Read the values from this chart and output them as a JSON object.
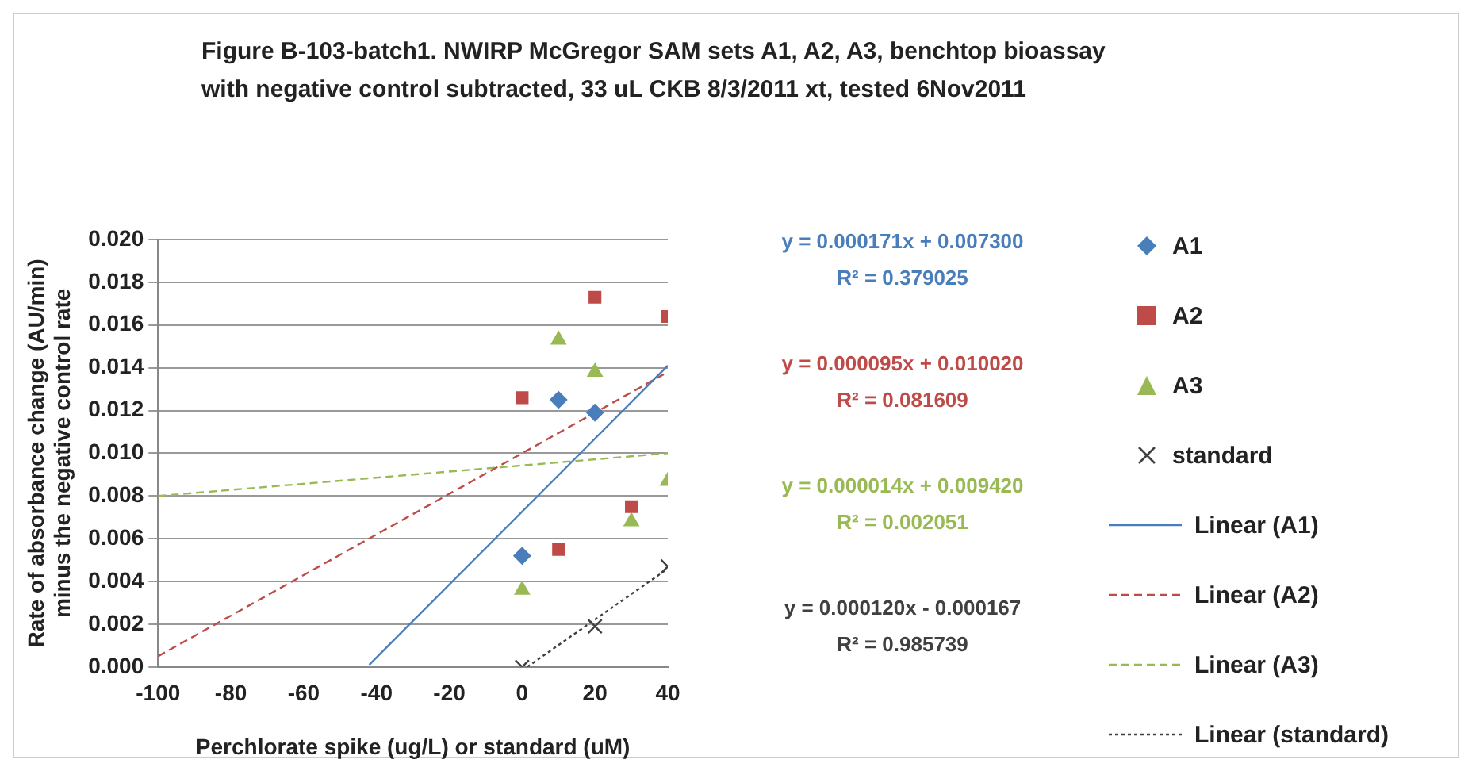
{
  "chart_data": {
    "type": "scatter",
    "title": "Figure B-103-batch1. NWIRP McGregor SAM sets A1, A2, A3, benchtop bioassay with negative control subtracted, 33 uL CKB 8/3/2011 xt, tested 6Nov2011",
    "xlabel": "Perchlorate spike (ug/L) or standard (uM)",
    "ylabel": "Rate of absorbance change (AU/min)\nminus the negative control rate",
    "xlim": [
      -100,
      40
    ],
    "xticks": [
      -100,
      -80,
      -60,
      -40,
      -20,
      0,
      20,
      40
    ],
    "ylim": [
      0,
      0.02
    ],
    "yticks": [
      {
        "value": 0,
        "label": "0.000"
      },
      {
        "value": 0.002,
        "label": "0.002"
      },
      {
        "value": 0.004,
        "label": "0.004"
      },
      {
        "value": 0.006,
        "label": "0.006"
      },
      {
        "value": 0.008,
        "label": "0.008"
      },
      {
        "value": 0.01,
        "label": "0.010"
      },
      {
        "value": 0.012,
        "label": "0.012"
      },
      {
        "value": 0.014,
        "label": "0.014"
      },
      {
        "value": 0.016,
        "label": "0.016"
      },
      {
        "value": 0.018,
        "label": "0.018"
      },
      {
        "value": 0.02,
        "label": "0.020"
      }
    ],
    "grid": "y",
    "legend": "right",
    "series": [
      {
        "name": "A1",
        "type": "scatter",
        "marker": "diamond",
        "color": "#4a7ebb",
        "x": [
          0,
          10,
          20
        ],
        "values": [
          0.0052,
          0.0125,
          0.0119
        ]
      },
      {
        "name": "A2",
        "type": "scatter",
        "marker": "square",
        "color": "#be4b48",
        "x": [
          0,
          10,
          20,
          30,
          40
        ],
        "values": [
          0.0126,
          0.0055,
          0.0173,
          0.0075,
          0.0164
        ]
      },
      {
        "name": "A3",
        "type": "scatter",
        "marker": "triangle",
        "color": "#98b954",
        "x": [
          0,
          10,
          20,
          30,
          40
        ],
        "values": [
          0.0036,
          0.0153,
          0.0138,
          0.0068,
          0.0087
        ]
      },
      {
        "name": "standard",
        "type": "scatter",
        "marker": "cross",
        "color": "#404040",
        "x": [
          0,
          20,
          40
        ],
        "values": [
          0,
          0.0019,
          0.0047
        ]
      },
      {
        "name": "Linear (A1)",
        "type": "line",
        "marker": "none",
        "line_style": "solid",
        "color": "#4a7ebb",
        "x": [
          -42,
          40
        ],
        "values": [
          0.0001,
          0.0141
        ]
      },
      {
        "name": "Linear (A2)",
        "type": "line",
        "marker": "none",
        "line_style": "dashed",
        "color": "#be4b48",
        "x": [
          -100,
          40
        ],
        "values": [
          0.0005,
          0.0138
        ]
      },
      {
        "name": "Linear (A3)",
        "type": "line",
        "marker": "none",
        "line_style": "dashed",
        "color": "#98b954",
        "x": [
          -100,
          40
        ],
        "values": [
          0.008,
          0.01
        ]
      },
      {
        "name": "Linear (standard)",
        "type": "line",
        "marker": "none",
        "line_style": "dotted",
        "color": "#404040",
        "x": [
          1.4,
          40
        ],
        "values": [
          0,
          0.0046
        ]
      }
    ],
    "annotations": [
      "y = 0.000171x + 0.007300",
      "R² = 0.379025",
      "y = 0.000095x + 0.010020",
      "R² = 0.081609",
      "y = 0.000014x + 0.009420",
      "R² = 0.002051",
      "y = 0.000120x - 0.000167",
      "R² = 0.985739"
    ]
  }
}
